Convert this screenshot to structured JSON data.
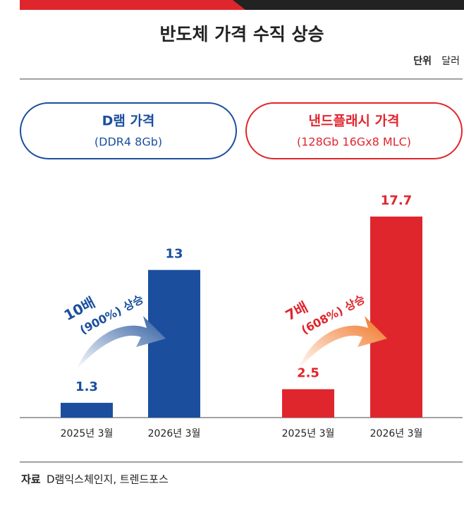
{
  "title": "반도체 가격 수직 상승",
  "unit_label": "단위",
  "unit": "달러",
  "source_label": "자료",
  "source": "D램익스체인지, 트렌드포스",
  "chart_data": [
    {
      "type": "bar",
      "title": "D램 가격",
      "subtitle": "(DDR4 8Gb)",
      "categories": [
        "2025년 3월",
        "2026년 3월"
      ],
      "values": [
        1.3,
        13
      ],
      "color": "#1b4f9e",
      "annotation": [
        "10배",
        "(900%) 상승"
      ]
    },
    {
      "type": "bar",
      "title": "낸드플래시 가격",
      "subtitle": "(128Gb 16Gx8 MLC)",
      "categories": [
        "2025년 3월",
        "2026년 3월"
      ],
      "values": [
        2.5,
        17.7
      ],
      "color": "#e0262d",
      "annotation": [
        "7배",
        "(608%) 상승"
      ]
    }
  ]
}
